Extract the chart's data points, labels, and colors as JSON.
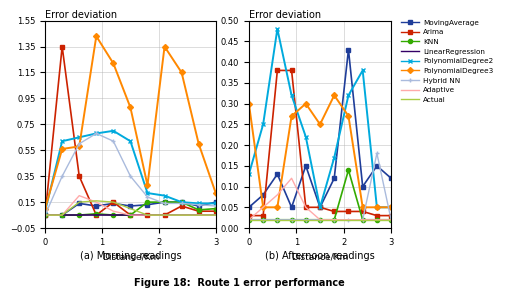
{
  "left_title": "Error deviation",
  "right_title": "Error deviation",
  "left_xlabel": "Distance/Km",
  "right_xlabel": "Distance/Km",
  "left_subtitle": "(a) Morning readings",
  "right_subtitle": "(b) Afternoon readings",
  "main_title": "Figure 18:  Route 1 error performance",
  "left_ylim": [
    -0.05,
    1.55
  ],
  "right_ylim": [
    0,
    0.5
  ],
  "left_yticks": [
    -0.05,
    0.15,
    0.35,
    0.55,
    0.75,
    0.95,
    1.15,
    1.35,
    1.55
  ],
  "right_yticks": [
    0,
    0.05,
    0.1,
    0.15,
    0.2,
    0.25,
    0.3,
    0.35,
    0.4,
    0.45,
    0.5
  ],
  "left_xticks": [
    0,
    1,
    2,
    3
  ],
  "right_xticks": [
    0,
    1,
    2,
    3
  ],
  "series": [
    {
      "name": "MovingAverage",
      "color": "#1F3D99",
      "marker": "s",
      "lw": 1.2
    },
    {
      "name": "Arima",
      "color": "#CC2200",
      "marker": "s",
      "lw": 1.2
    },
    {
      "name": "KNN",
      "color": "#33AA00",
      "marker": "o",
      "lw": 1.2
    },
    {
      "name": "LinearRegression",
      "color": "#330066",
      "marker": "none",
      "lw": 1.2
    },
    {
      "name": "PolynomialDegree2",
      "color": "#00AADD",
      "marker": "x",
      "lw": 1.4
    },
    {
      "name": "PolynomialDegree3",
      "color": "#FF8800",
      "marker": "D",
      "lw": 1.4
    },
    {
      "name": "Hybrid NN",
      "color": "#AABBDD",
      "marker": "+",
      "lw": 1.0
    },
    {
      "name": "Adaptive",
      "color": "#FFAAAA",
      "marker": "none",
      "lw": 1.0
    },
    {
      "name": "Actual",
      "color": "#AACC44",
      "marker": "none",
      "lw": 1.0
    }
  ],
  "left_data": {
    "MovingAverage": [
      0.05,
      0.05,
      0.14,
      0.12,
      0.14,
      0.12,
      0.13,
      0.15,
      0.15,
      0.12,
      0.15
    ],
    "Arima": [
      0.05,
      1.35,
      0.35,
      0.05,
      0.15,
      0.05,
      0.05,
      0.05,
      0.12,
      0.08,
      0.08
    ],
    "KNN": [
      0.05,
      0.05,
      0.05,
      0.06,
      0.05,
      0.05,
      0.15,
      0.15,
      0.15,
      0.09,
      0.1
    ],
    "LinearRegression": [
      0.05,
      0.05,
      0.05,
      0.05,
      0.05,
      0.05,
      0.05,
      0.05,
      0.05,
      0.05,
      0.05
    ],
    "PolynomialDegree2": [
      0.08,
      0.62,
      0.65,
      0.68,
      0.7,
      0.62,
      0.22,
      0.2,
      0.15,
      0.14,
      0.14
    ],
    "PolynomialDegree3": [
      0.1,
      0.56,
      0.58,
      1.43,
      1.22,
      0.88,
      0.28,
      1.35,
      1.15,
      0.6,
      0.22
    ],
    "Hybrid NN": [
      0.05,
      0.35,
      0.6,
      0.68,
      0.62,
      0.35,
      0.19,
      0.14,
      0.14,
      0.13,
      0.12
    ],
    "Adaptive": [
      0.05,
      0.05,
      0.2,
      0.15,
      0.08,
      0.05,
      0.05,
      0.05,
      0.05,
      0.05,
      0.05
    ],
    "Actual": [
      0.05,
      0.05,
      0.15,
      0.16,
      0.15,
      0.1,
      0.05,
      0.05,
      0.05,
      0.05,
      0.05
    ]
  },
  "left_x": [
    0,
    0.3,
    0.6,
    0.9,
    1.2,
    1.5,
    1.8,
    2.1,
    2.4,
    2.7,
    3.0
  ],
  "right_data": {
    "MovingAverage": [
      0.05,
      0.08,
      0.13,
      0.05,
      0.15,
      0.05,
      0.12,
      0.43,
      0.1,
      0.15,
      0.12
    ],
    "Arima": [
      0.03,
      0.03,
      0.38,
      0.38,
      0.05,
      0.05,
      0.04,
      0.04,
      0.04,
      0.03,
      0.03
    ],
    "KNN": [
      0.02,
      0.02,
      0.02,
      0.02,
      0.02,
      0.02,
      0.02,
      0.14,
      0.02,
      0.02,
      0.02
    ],
    "LinearRegression": [
      0.02,
      0.02,
      0.02,
      0.02,
      0.02,
      0.02,
      0.02,
      0.02,
      0.02,
      0.02,
      0.02
    ],
    "PolynomialDegree2": [
      0.13,
      0.25,
      0.48,
      0.32,
      0.22,
      0.05,
      0.17,
      0.32,
      0.38,
      0.05,
      0.05
    ],
    "PolynomialDegree3": [
      0.3,
      0.05,
      0.05,
      0.27,
      0.3,
      0.25,
      0.32,
      0.27,
      0.05,
      0.05,
      0.05
    ],
    "Hybrid NN": [
      0.02,
      0.02,
      0.02,
      0.02,
      0.02,
      0.02,
      0.02,
      0.02,
      0.02,
      0.18,
      0.02
    ],
    "Adaptive": [
      0.02,
      0.05,
      0.08,
      0.12,
      0.05,
      0.02,
      0.02,
      0.02,
      0.02,
      0.02,
      0.02
    ],
    "Actual": [
      0.02,
      0.02,
      0.02,
      0.02,
      0.02,
      0.02,
      0.02,
      0.02,
      0.02,
      0.02,
      0.02
    ]
  },
  "right_x": [
    0,
    0.3,
    0.6,
    0.9,
    1.2,
    1.5,
    1.8,
    2.1,
    2.4,
    2.7,
    3.0
  ]
}
